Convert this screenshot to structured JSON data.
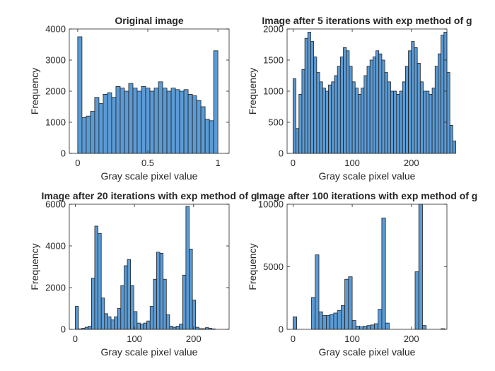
{
  "chart_data": [
    {
      "type": "bar",
      "title": "Original image",
      "xlabel": "Gray scale pixel value",
      "ylabel": "Frequency",
      "xlim": [
        -0.06,
        1.08
      ],
      "ylim": [
        0,
        4000
      ],
      "xticks": [
        0,
        0.5,
        1
      ],
      "yticks": [
        0,
        1000,
        2000,
        3000,
        4000
      ],
      "bin_start": 0,
      "bin_width": 0.0303,
      "values": [
        3750,
        1150,
        1200,
        1350,
        1800,
        1600,
        1900,
        1950,
        1800,
        2150,
        2100,
        2000,
        2250,
        2100,
        2000,
        2150,
        2100,
        2000,
        2100,
        2300,
        2100,
        2000,
        2100,
        2050,
        2000,
        2050,
        1900,
        1850,
        1700,
        1500,
        1100,
        1050,
        3300
      ]
    },
    {
      "type": "bar",
      "title": "Image after 5 iterations with exp method of g",
      "xlabel": "Gray scale pixel value",
      "ylabel": "Frequency",
      "xlim": [
        -10,
        260
      ],
      "ylim": [
        0,
        2000
      ],
      "xticks": [
        0,
        100,
        200
      ],
      "yticks": [
        0,
        500,
        1000,
        1500,
        2000
      ],
      "bin_start": 0,
      "bin_width": 5,
      "values": [
        1200,
        400,
        950,
        1350,
        1850,
        1950,
        1800,
        1550,
        1300,
        1150,
        1050,
        1000,
        1100,
        1150,
        1250,
        1400,
        1550,
        1700,
        1650,
        1400,
        1150,
        1050,
        950,
        1050,
        1250,
        1400,
        1500,
        1550,
        1650,
        1600,
        1500,
        1300,
        1150,
        1000,
        1000,
        950,
        1000,
        1150,
        1400,
        1650,
        1800,
        1700,
        1450,
        1150,
        1000,
        1000,
        950,
        1050,
        1400,
        1600,
        1900,
        1950,
        1300,
        450,
        200
      ]
    },
    {
      "type": "bar",
      "title": "Image after 20 iterations with exp method of g",
      "xlabel": "Gray scale pixel value",
      "ylabel": "Frequency",
      "xlim": [
        -10,
        260
      ],
      "ylim": [
        0,
        6000
      ],
      "xticks": [
        0,
        100,
        200
      ],
      "yticks": [
        0,
        2000,
        4000,
        6000
      ],
      "bin_start": 0,
      "bin_width": 5.5,
      "values": [
        1100,
        20,
        50,
        100,
        150,
        2450,
        4950,
        4600,
        1500,
        750,
        600,
        450,
        600,
        1000,
        2100,
        3050,
        3350,
        2100,
        850,
        300,
        250,
        300,
        400,
        1100,
        2400,
        3700,
        3650,
        2400,
        700,
        150,
        100,
        150,
        250,
        2600,
        5900,
        3850,
        1400,
        100,
        30,
        30,
        80,
        50,
        20
      ]
    },
    {
      "type": "bar",
      "title": "Image after 100 iterations with exp method of g",
      "xlabel": "Gray scale pixel value",
      "ylabel": "Frequency",
      "xlim": [
        -10,
        260
      ],
      "ylim": [
        0,
        10000
      ],
      "xticks": [
        0,
        100,
        200
      ],
      "yticks": [
        0,
        5000,
        10000
      ],
      "bin_start": 0,
      "bin_width": 6.25,
      "values": [
        1000,
        0,
        0,
        0,
        0,
        2550,
        5950,
        1400,
        1100,
        1100,
        1200,
        1300,
        1500,
        1900,
        4000,
        4200,
        700,
        250,
        200,
        250,
        300,
        350,
        450,
        1600,
        8900,
        500,
        0,
        0,
        0,
        0,
        0,
        0,
        0,
        4600,
        10100,
        300,
        0,
        0,
        0,
        0,
        50,
        0
      ]
    }
  ]
}
